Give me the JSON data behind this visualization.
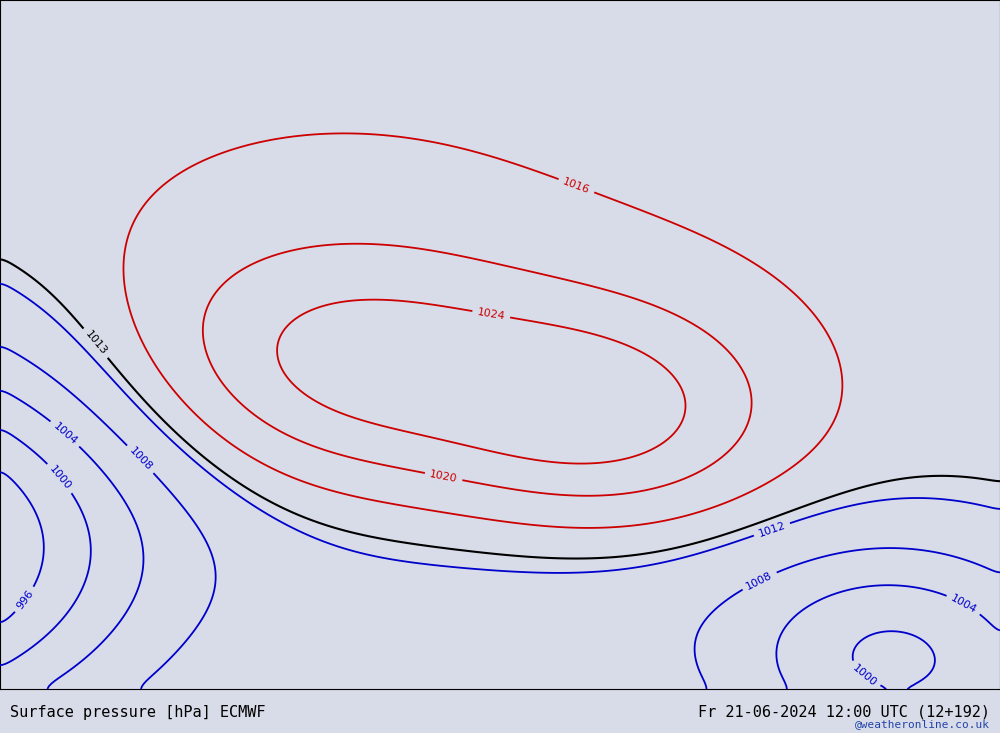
{
  "title_left": "Surface pressure [hPa] ECMWF",
  "title_right": "Fr 21-06-2024 12:00 UTC (12+192)",
  "watermark": "@weatheronline.co.uk",
  "background_color": "#ffffff",
  "land_color": "#c8eba0",
  "ocean_color": "#d8dce8",
  "coastline_color": "#707070",
  "border_color": "#909090",
  "fig_width": 10.0,
  "fig_height": 7.33,
  "dpi": 100,
  "extent": [
    90,
    185,
    -62,
    15
  ],
  "contour_color_red": "#cc0000",
  "contour_color_blue": "#0000cc",
  "contour_color_black": "#000000",
  "label_fontsize": 8,
  "title_fontsize": 11,
  "watermark_fontsize": 8,
  "watermark_color": "#2244aa",
  "high_centers": [
    {
      "lon": 122.0,
      "lat": -27.0,
      "amplitude": 13.0,
      "sx": 18,
      "sy": 13
    },
    {
      "lon": 148.0,
      "lat": -32.0,
      "amplitude": 11.5,
      "sx": 14,
      "sy": 11
    }
  ],
  "low_centers": [
    {
      "lon": 75.0,
      "lat": -47.0,
      "amplitude": 28.0,
      "sx": 22,
      "sy": 16
    },
    {
      "lon": 175.0,
      "lat": -58.0,
      "amplitude": 10.0,
      "sx": 12,
      "sy": 10
    }
  ],
  "base_pressure": 1013.0,
  "sigma_smooth": 2.5,
  "grid_n_lon": 400,
  "grid_n_lat": 260
}
